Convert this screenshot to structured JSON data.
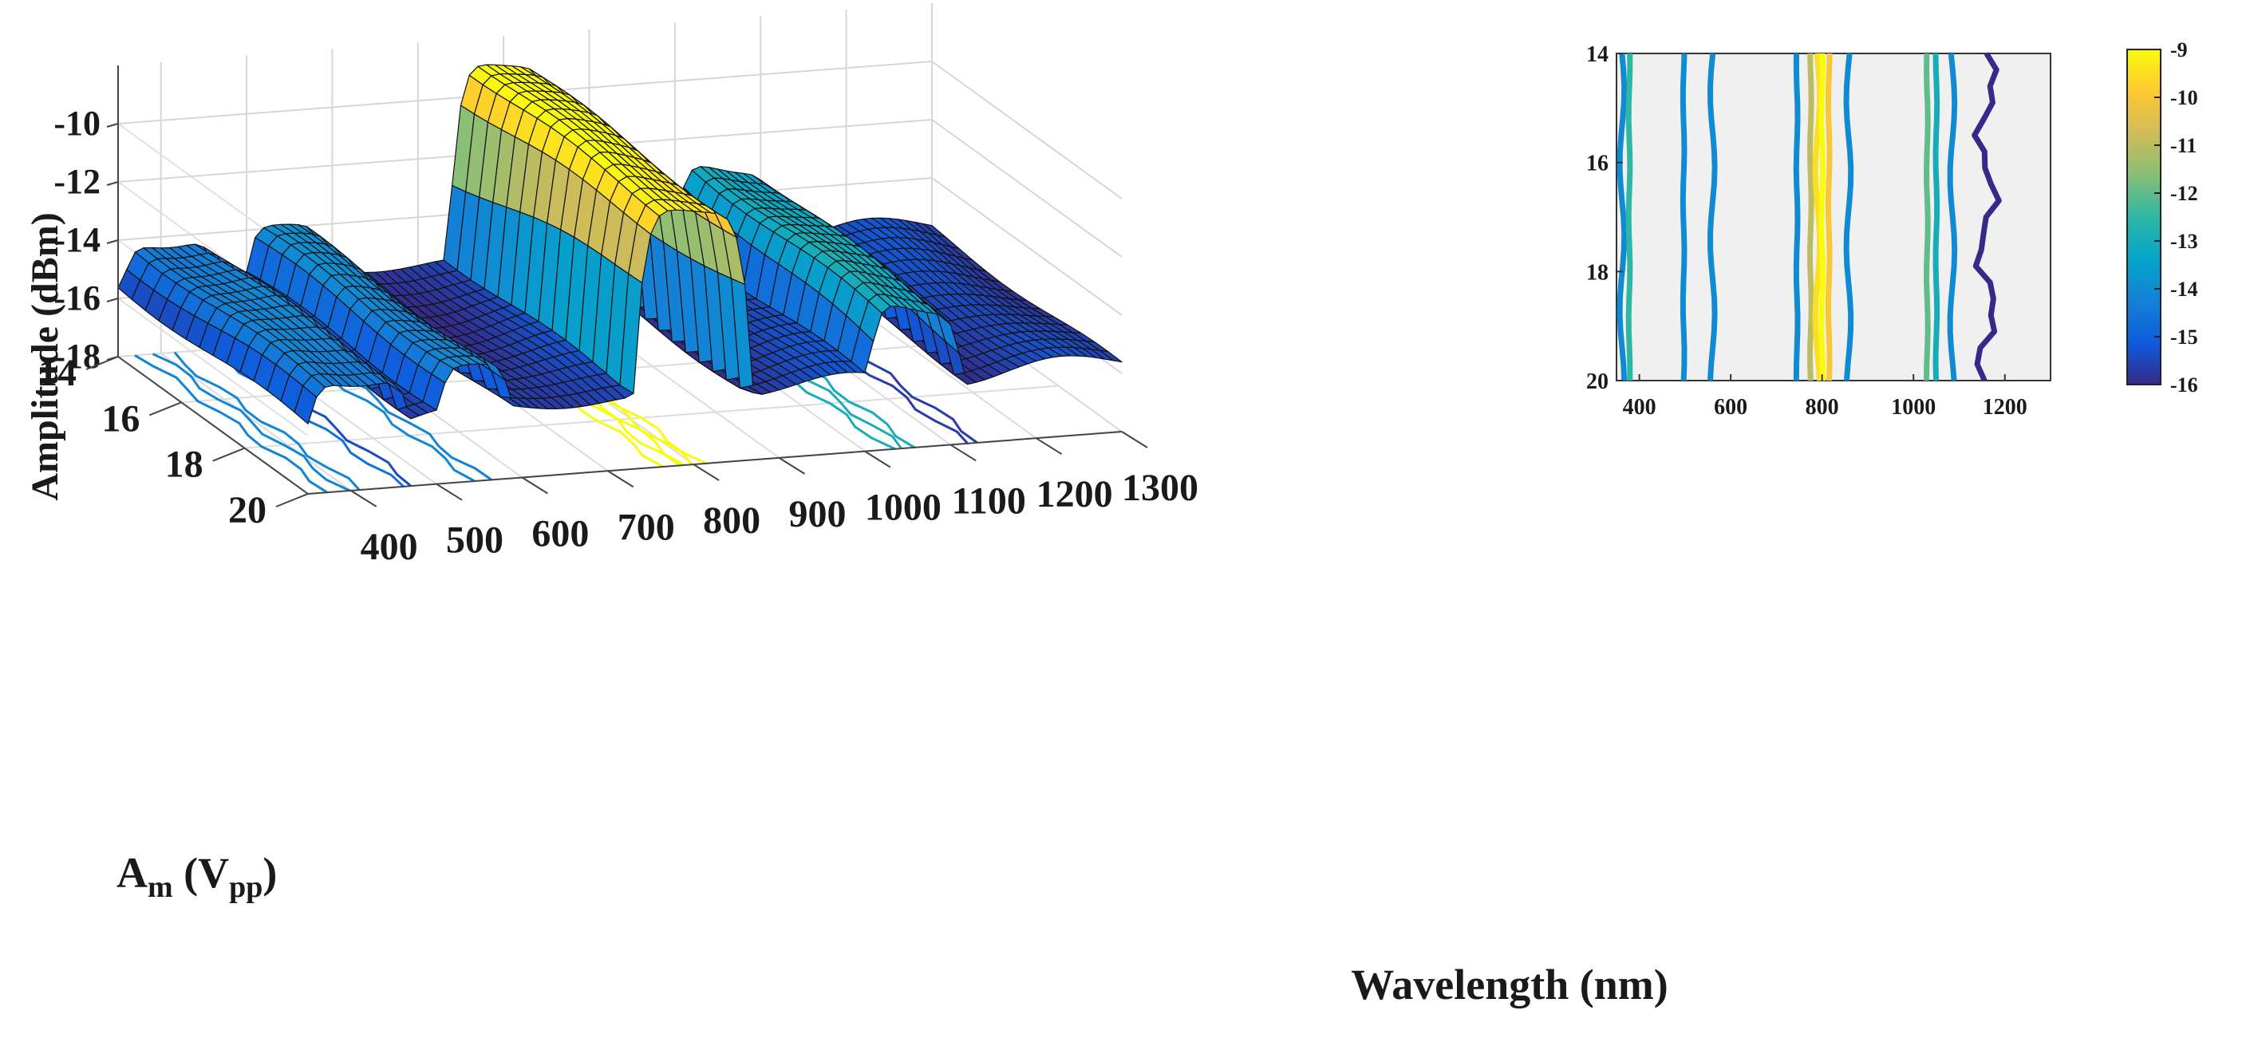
{
  "chart_data": [
    {
      "type": "surface3d",
      "title": "",
      "xlabel": "Wavelength (nm)",
      "ylabel_main": "A",
      "ylabel_sub": "m",
      "ylabel_unit_open": " (V",
      "ylabel_unit_sub": "pp",
      "ylabel_unit_close": ")",
      "zlabel": "Amplitude (dBm)",
      "x_ticks": [
        "400",
        "500",
        "600",
        "700",
        "800",
        "900",
        "1000",
        "1100",
        "1200",
        "1300"
      ],
      "x_tick_values": [
        400,
        500,
        600,
        700,
        800,
        900,
        1000,
        1100,
        1200,
        1300
      ],
      "y_ticks": [
        "14",
        "16",
        "18",
        "20"
      ],
      "y_tick_values": [
        14,
        16,
        18,
        20
      ],
      "z_ticks": [
        "-10",
        "-12",
        "-14",
        "-16",
        "-18"
      ],
      "z_tick_values": [
        -10,
        -12,
        -14,
        -16,
        -18
      ],
      "xlim": [
        350,
        1300
      ],
      "ylim": [
        14,
        20
      ],
      "zlim": [
        -18,
        -8
      ],
      "peaks": [
        {
          "center_nm": 410,
          "width_nm": 55,
          "amplitude_dBm": -14.0
        },
        {
          "center_nm": 545,
          "width_nm": 45,
          "amplitude_dBm": -14.2
        },
        {
          "center_nm": 800,
          "width_nm": 65,
          "amplitude_dBm": -9.0
        },
        {
          "center_nm": 1060,
          "width_nm": 60,
          "amplitude_dBm": -13.0
        }
      ],
      "baseline_dBm": -15.6,
      "floor_contours_nm": [
        375,
        395,
        410,
        460,
        475,
        545,
        560,
        765,
        780,
        790,
        800,
        810,
        1030,
        1045,
        1060,
        1120,
        1135
      ]
    },
    {
      "type": "contour",
      "title": "",
      "x_ticks": [
        "400",
        "600",
        "800",
        "1000",
        "1200"
      ],
      "x_tick_values": [
        400,
        600,
        800,
        1000,
        1200
      ],
      "y_ticks": [
        "14",
        "16",
        "18",
        "20"
      ],
      "y_tick_values": [
        14,
        16,
        18,
        20
      ],
      "xlim": [
        350,
        1300
      ],
      "ylim": [
        14,
        20
      ],
      "contour_lines": [
        {
          "x_nm": 362,
          "level_dBm": -14
        },
        {
          "x_nm": 378,
          "level_dBm": -12.5
        },
        {
          "x_nm": 497,
          "level_dBm": -14
        },
        {
          "x_nm": 560,
          "level_dBm": -14
        },
        {
          "x_nm": 745,
          "level_dBm": -14
        },
        {
          "x_nm": 775,
          "level_dBm": -11
        },
        {
          "x_nm": 790,
          "level_dBm": -9.5
        },
        {
          "x_nm": 800,
          "level_dBm": -9
        },
        {
          "x_nm": 815,
          "level_dBm": -10
        },
        {
          "x_nm": 858,
          "level_dBm": -14
        },
        {
          "x_nm": 1030,
          "level_dBm": -12
        },
        {
          "x_nm": 1050,
          "level_dBm": -13
        },
        {
          "x_nm": 1085,
          "level_dBm": -14
        },
        {
          "x_nm": 1160,
          "level_dBm": -16
        }
      ],
      "colorbar": {
        "ticks": [
          "-9",
          "-10",
          "-11",
          "-12",
          "-13",
          "-14",
          "-15",
          "-16"
        ],
        "tick_values": [
          -9,
          -10,
          -11,
          -12,
          -13,
          -14,
          -15,
          -16
        ],
        "range": [
          -16,
          -9
        ],
        "colormap": [
          "#352a87",
          "#0f5cdd",
          "#1481d6",
          "#06a4ca",
          "#2eb7a4",
          "#87bf77",
          "#d1bb59",
          "#fec832",
          "#f9fb0e"
        ]
      }
    }
  ]
}
